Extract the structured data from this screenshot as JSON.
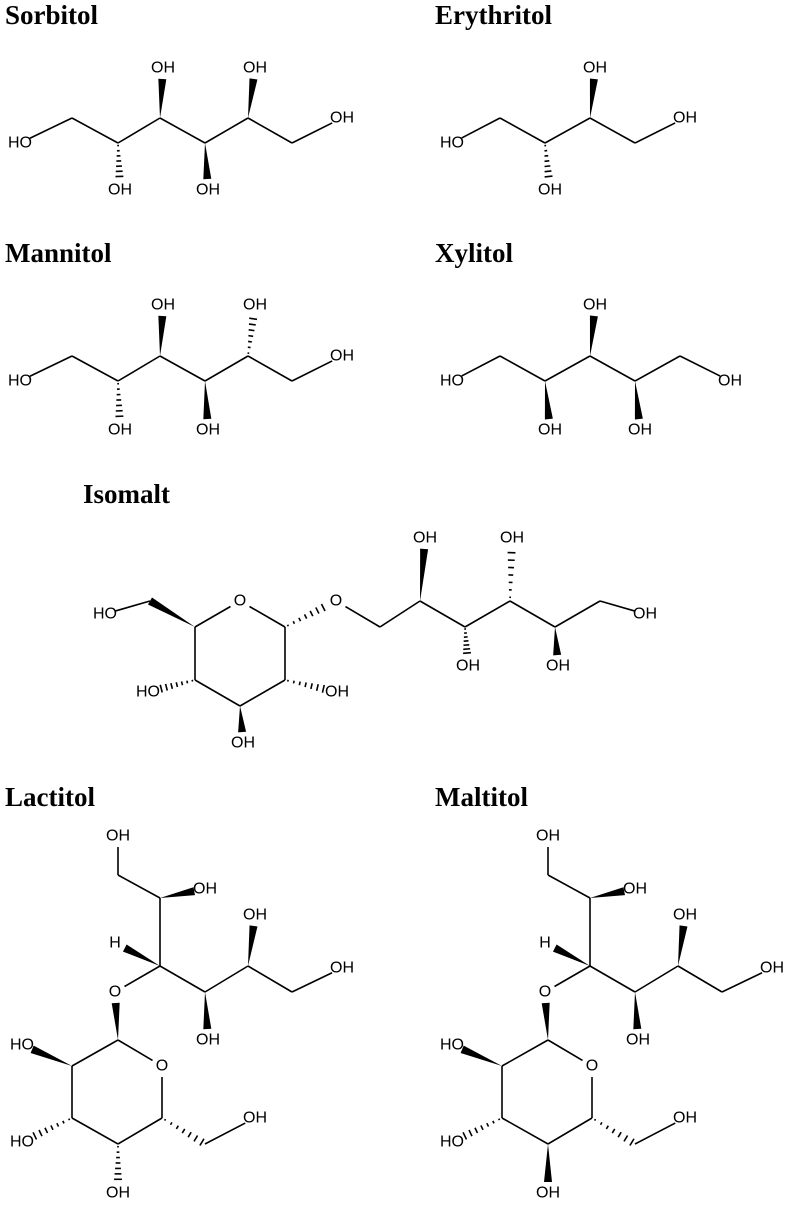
{
  "molecules": [
    {
      "name": "Sorbitol",
      "labels": [
        "HO",
        "OH",
        "OH",
        "OH",
        "OH",
        "OH"
      ]
    },
    {
      "name": "Erythritol",
      "labels": [
        "HO",
        "OH",
        "OH",
        "OH"
      ]
    },
    {
      "name": "Mannitol",
      "labels": [
        "HO",
        "OH",
        "OH",
        "OH",
        "OH",
        "OH"
      ]
    },
    {
      "name": "Xylitol",
      "labels": [
        "HO",
        "OH",
        "OH",
        "OH",
        "OH"
      ]
    },
    {
      "name": "Isomalt",
      "labels": [
        "HO",
        "O",
        "O",
        "OH",
        "OH",
        "OH",
        "OH",
        "OH",
        "HO",
        "OH",
        "OH"
      ]
    },
    {
      "name": "Lactitol",
      "labels": [
        "OH",
        "OH",
        "H",
        "O",
        "OH",
        "OH",
        "OH",
        "HO",
        "O",
        "OH",
        "HO",
        "OH"
      ]
    },
    {
      "name": "Maltitol",
      "labels": [
        "OH",
        "OH",
        "H",
        "O",
        "OH",
        "OH",
        "OH",
        "HO",
        "O",
        "OH",
        "HO",
        "OH"
      ]
    }
  ]
}
